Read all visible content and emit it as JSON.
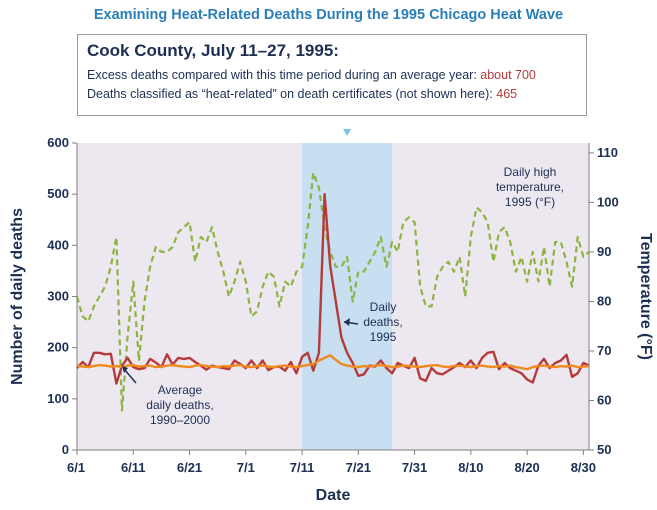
{
  "title": "Examining Heat-Related Deaths During the 1995 Chicago Heat Wave",
  "summary": {
    "heading": "Cook County, July 11–27, 1995:",
    "line1_text": "Excess deaths compared with this time period during an average year: ",
    "line1_value": "about 700",
    "line2_text": "Deaths classified as “heat-related” on death certificates (not shown here): ",
    "line2_value": "465"
  },
  "colors": {
    "deaths_1995": "#b63a3a",
    "average_deaths": "#f0891e",
    "temperature": "#8db342",
    "highlight_band": "#c8dff2",
    "plot_background": "#ede8f0",
    "text": "#1d2f52"
  },
  "chart_data": {
    "type": "line",
    "xlabel": "Date",
    "ylabel_left": "Number of daily deaths",
    "ylabel_right": "Temperature (°F)",
    "ylim_left": [
      0,
      600
    ],
    "ylim_right": [
      50,
      112
    ],
    "yticks_left": [
      0,
      100,
      200,
      300,
      400,
      500,
      600
    ],
    "yticks_right": [
      50,
      60,
      70,
      80,
      90,
      100,
      110
    ],
    "x_range": [
      "1995-06-01",
      "1995-08-31"
    ],
    "x_ticks": [
      {
        "date": "1995-06-01",
        "label": "6/1"
      },
      {
        "date": "1995-06-11",
        "label": "6/11"
      },
      {
        "date": "1995-06-21",
        "label": "6/21"
      },
      {
        "date": "1995-07-01",
        "label": "7/1"
      },
      {
        "date": "1995-07-11",
        "label": "7/11"
      },
      {
        "date": "1995-07-21",
        "label": "7/21"
      },
      {
        "date": "1995-07-31",
        "label": "7/31"
      },
      {
        "date": "1995-08-10",
        "label": "8/10"
      },
      {
        "date": "1995-08-20",
        "label": "8/20"
      },
      {
        "date": "1995-08-30",
        "label": "8/30"
      }
    ],
    "highlight_range": [
      "1995-07-11",
      "1995-07-27"
    ],
    "grid": false,
    "dates": [
      "1995-06-01",
      "1995-06-02",
      "1995-06-03",
      "1995-06-04",
      "1995-06-05",
      "1995-06-06",
      "1995-06-07",
      "1995-06-08",
      "1995-06-09",
      "1995-06-10",
      "1995-06-11",
      "1995-06-12",
      "1995-06-13",
      "1995-06-14",
      "1995-06-15",
      "1995-06-16",
      "1995-06-17",
      "1995-06-18",
      "1995-06-19",
      "1995-06-20",
      "1995-06-21",
      "1995-06-22",
      "1995-06-23",
      "1995-06-24",
      "1995-06-25",
      "1995-06-26",
      "1995-06-27",
      "1995-06-28",
      "1995-06-29",
      "1995-06-30",
      "1995-07-01",
      "1995-07-02",
      "1995-07-03",
      "1995-07-04",
      "1995-07-05",
      "1995-07-06",
      "1995-07-07",
      "1995-07-08",
      "1995-07-09",
      "1995-07-10",
      "1995-07-11",
      "1995-07-12",
      "1995-07-13",
      "1995-07-14",
      "1995-07-15",
      "1995-07-16",
      "1995-07-17",
      "1995-07-18",
      "1995-07-19",
      "1995-07-20",
      "1995-07-21",
      "1995-07-22",
      "1995-07-23",
      "1995-07-24",
      "1995-07-25",
      "1995-07-26",
      "1995-07-27",
      "1995-07-28",
      "1995-07-29",
      "1995-07-30",
      "1995-07-31",
      "1995-08-01",
      "1995-08-02",
      "1995-08-03",
      "1995-08-04",
      "1995-08-05",
      "1995-08-06",
      "1995-08-07",
      "1995-08-08",
      "1995-08-09",
      "1995-08-10",
      "1995-08-11",
      "1995-08-12",
      "1995-08-13",
      "1995-08-14",
      "1995-08-15",
      "1995-08-16",
      "1995-08-17",
      "1995-08-18",
      "1995-08-19",
      "1995-08-20",
      "1995-08-21",
      "1995-08-22",
      "1995-08-23",
      "1995-08-24",
      "1995-08-25",
      "1995-08-26",
      "1995-08-27",
      "1995-08-28",
      "1995-08-29",
      "1995-08-30",
      "1995-08-31"
    ],
    "series": [
      {
        "name": "Daily high temperature, 1995 (°F)",
        "axis": "right",
        "style": "dashed",
        "values": [
          81,
          77,
          76,
          79,
          81,
          83,
          87,
          93,
          58,
          73,
          84,
          68,
          80,
          87,
          91,
          90,
          90,
          91,
          94,
          95,
          96,
          88,
          93,
          92,
          95,
          90,
          86,
          81,
          84,
          88,
          84,
          77,
          78,
          83,
          86,
          85,
          79,
          84,
          83,
          86,
          87,
          95,
          106,
          103,
          95,
          90,
          87,
          87,
          89,
          80,
          86,
          86,
          88,
          90,
          93,
          87,
          92,
          90,
          96,
          97,
          96,
          83,
          79,
          79,
          85,
          87,
          88,
          86,
          89,
          81,
          93,
          99,
          98,
          96,
          88,
          94,
          95,
          92,
          86,
          89,
          84,
          90,
          84,
          91,
          83,
          92,
          92,
          88,
          83,
          93,
          89,
          90
        ]
      },
      {
        "name": "Daily deaths, 1995",
        "axis": "left",
        "style": "solid",
        "values": [
          160,
          172,
          162,
          190,
          190,
          187,
          188,
          130,
          165,
          180,
          162,
          158,
          160,
          178,
          171,
          162,
          187,
          167,
          180,
          178,
          180,
          172,
          165,
          157,
          165,
          162,
          160,
          158,
          175,
          168,
          160,
          175,
          160,
          175,
          156,
          162,
          163,
          155,
          172,
          150,
          182,
          190,
          155,
          190,
          500,
          360,
          290,
          220,
          190,
          170,
          145,
          148,
          165,
          163,
          175,
          160,
          150,
          170,
          165,
          160,
          180,
          140,
          135,
          160,
          150,
          148,
          155,
          162,
          170,
          162,
          175,
          160,
          180,
          190,
          192,
          158,
          170,
          160,
          155,
          150,
          138,
          132,
          165,
          178,
          160,
          170,
          175,
          186,
          143,
          150,
          170,
          165
        ]
      },
      {
        "name": "Average daily deaths, 1990–2000",
        "axis": "left",
        "style": "solid",
        "values": [
          165,
          163,
          162,
          164,
          166,
          165,
          163,
          164,
          162,
          165,
          166,
          163,
          164,
          165,
          162,
          163,
          165,
          166,
          164,
          163,
          162,
          165,
          166,
          164,
          163,
          162,
          164,
          163,
          165,
          166,
          163,
          162,
          164,
          165,
          163,
          162,
          164,
          165,
          163,
          162,
          164,
          166,
          168,
          175,
          180,
          185,
          176,
          168,
          165,
          163,
          162,
          164,
          163,
          165,
          166,
          164,
          162,
          163,
          165,
          164,
          163,
          162,
          164,
          165,
          166,
          163,
          162,
          164,
          165,
          163,
          162,
          164,
          165,
          163,
          162,
          164,
          163,
          165,
          162,
          160,
          158,
          162,
          164,
          165,
          163,
          162,
          164,
          163,
          165,
          162,
          163,
          164
        ]
      }
    ],
    "annotations": [
      {
        "lines": [
          "Daily high",
          "temperature,",
          "1995 (°F)"
        ],
        "series": "Daily high temperature, 1995 (°F)"
      },
      {
        "lines": [
          "Daily",
          "deaths,",
          "1995"
        ],
        "series": "Daily deaths, 1995"
      },
      {
        "lines": [
          "Average",
          "daily deaths,",
          "1990–2000"
        ],
        "series": "Average daily deaths, 1990–2000"
      }
    ]
  }
}
